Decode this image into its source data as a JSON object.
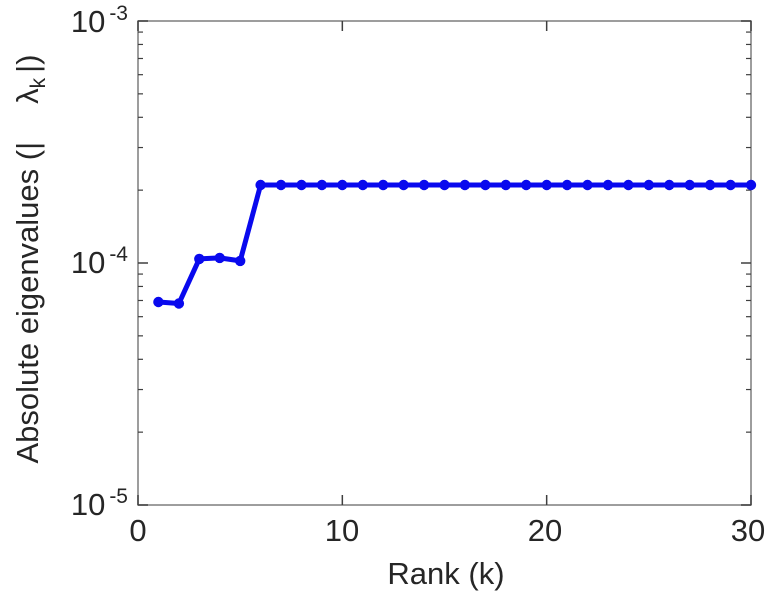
{
  "figure": {
    "xlabel": "Rank (k)",
    "ylabel": {
      "prefix": "Absolute eigenvalues (|",
      "lambda": "λ",
      "sub": "k",
      "suffix": "|)"
    },
    "xticks": [
      "0",
      "10",
      "20",
      "30"
    ],
    "yticks": [
      {
        "base": "10",
        "exp": "-5"
      },
      {
        "base": "10",
        "exp": "-4"
      },
      {
        "base": "10",
        "exp": "-3"
      }
    ]
  },
  "chart_data": {
    "type": "line",
    "title": "",
    "xlabel": "Rank (k)",
    "ylabel": "Absolute eigenvalues (| λ_k |)",
    "yscale": "log",
    "xlim": [
      0,
      30
    ],
    "ylim": [
      1e-05,
      0.001
    ],
    "xticks": [
      0,
      10,
      20,
      30
    ],
    "yticks": [
      1e-05,
      0.0001,
      0.001
    ],
    "grid": false,
    "legend": "none",
    "series": [
      {
        "name": "absolute-eigenvalues",
        "x": [
          1,
          2,
          3,
          4,
          5,
          6,
          7,
          8,
          9,
          10,
          11,
          12,
          13,
          14,
          15,
          16,
          17,
          18,
          19,
          20,
          21,
          22,
          23,
          24,
          25,
          26,
          27,
          28,
          29,
          30
        ],
        "y": [
          6.9e-05,
          6.8e-05,
          0.000104,
          0.000105,
          0.000102,
          0.00021,
          0.00021,
          0.00021,
          0.00021,
          0.00021,
          0.00021,
          0.00021,
          0.00021,
          0.00021,
          0.00021,
          0.00021,
          0.00021,
          0.00021,
          0.00021,
          0.00021,
          0.00021,
          0.00021,
          0.00021,
          0.00021,
          0.00021,
          0.00021,
          0.00021,
          0.00021,
          0.00021,
          0.00021
        ]
      }
    ],
    "style": {
      "line_color": "#0909EE",
      "line_width": 5,
      "marker": "dot",
      "marker_radius": 5.2,
      "axis_color": "#7d7d7d",
      "tick_color": "#3f3f3f",
      "text_color": "#262626",
      "background": "#ffffff"
    }
  }
}
